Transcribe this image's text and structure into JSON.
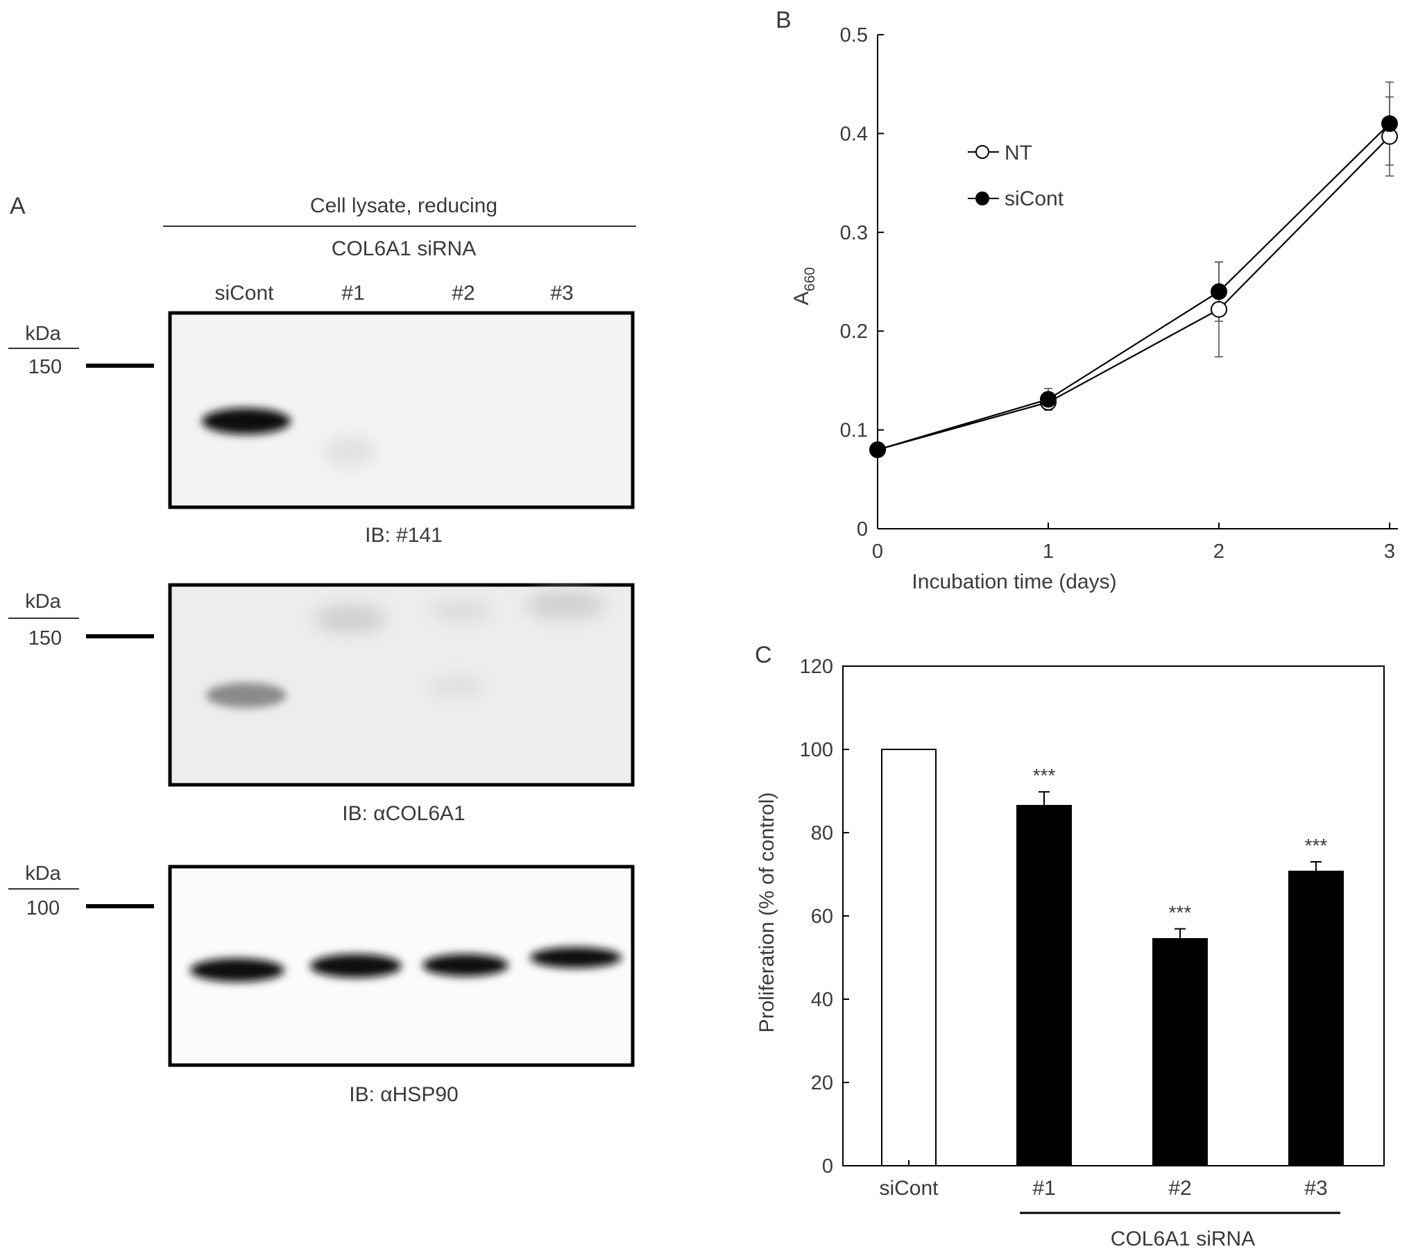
{
  "panel_a": {
    "label": "A",
    "header": "Cell lysate, reducing",
    "subheader": "COL6A1 siRNA",
    "lanes": [
      "siCont",
      "#1",
      "#2",
      "#3"
    ],
    "blots": [
      {
        "kda_label": "kDa",
        "marker": "150",
        "caption": "IB: #141"
      },
      {
        "kda_label": "kDa",
        "marker": "150",
        "caption": "IB: αCOL6A1"
      },
      {
        "kda_label": "kDa",
        "marker": "100",
        "caption": "IB: αHSP90"
      }
    ]
  },
  "panel_b": {
    "label": "B",
    "legend": [
      {
        "name": "NT",
        "marker": "open"
      },
      {
        "name": "siCont",
        "marker": "filled"
      }
    ]
  },
  "panel_c": {
    "label": "C",
    "group_label": "COL6A1 siRNA",
    "significance": [
      "",
      "***",
      "***",
      "***"
    ]
  },
  "chart_data": [
    {
      "type": "line",
      "panel": "B",
      "x": [
        0,
        1,
        2,
        3
      ],
      "xlim": [
        0,
        3
      ],
      "xticks": [
        "0",
        "1",
        "2",
        "3"
      ],
      "ylim": [
        0,
        0.5
      ],
      "yticks": [
        "0",
        "0.1",
        "0.2",
        "0.3",
        "0.4",
        "0.5"
      ],
      "xlabel": "Incubation time (days)",
      "ylabel": "A",
      "ylabel_sub": "660",
      "series": [
        {
          "name": "NT",
          "marker": "open",
          "values": [
            0.08,
            0.128,
            0.222,
            0.397
          ],
          "error": [
            0.003,
            0.008,
            0.048,
            0.04
          ]
        },
        {
          "name": "siCont",
          "marker": "filled",
          "values": [
            0.08,
            0.131,
            0.24,
            0.41
          ],
          "error": [
            0.003,
            0.011,
            0.03,
            0.042
          ]
        }
      ],
      "legend_position": "top-left",
      "grid": false
    },
    {
      "type": "bar",
      "panel": "C",
      "categories": [
        "siCont",
        "#1",
        "#2",
        "#3"
      ],
      "values": [
        100,
        86.5,
        54.5,
        70.7
      ],
      "error": [
        0,
        3.3,
        2.4,
        2.3
      ],
      "fill": [
        "#ffffff",
        "#000000",
        "#000000",
        "#000000"
      ],
      "ylim": [
        0,
        120
      ],
      "yticks": [
        "0",
        "20",
        "40",
        "60",
        "80",
        "100",
        "120"
      ],
      "xlabel": "COL6A1 siRNA",
      "ylabel": "Proliferation (% of control)",
      "grid": false
    }
  ]
}
